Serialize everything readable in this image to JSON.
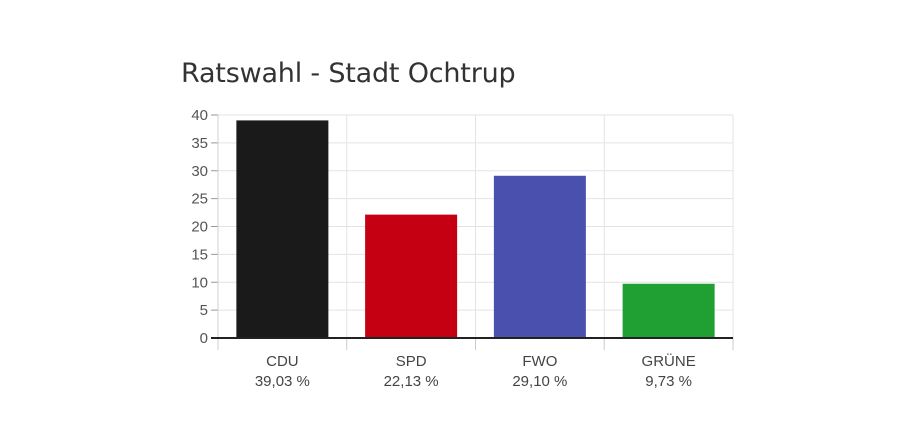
{
  "chart_data": {
    "type": "bar",
    "title": "Ratswahl - Stadt Ochtrup",
    "categories": [
      "CDU",
      "SPD",
      "FWO",
      "GRÜNE"
    ],
    "value_labels": [
      "39,03 %",
      "22,13 %",
      "29,10 %",
      "9,73 %"
    ],
    "values": [
      39.03,
      22.13,
      29.1,
      9.73
    ],
    "colors": [
      "#1a1a1a",
      "#c50012",
      "#4a50ad",
      "#20a032"
    ],
    "ylim": [
      0,
      40
    ],
    "yticks": [
      0,
      5,
      10,
      15,
      20,
      25,
      30,
      35,
      40
    ],
    "xlabel": "",
    "ylabel": "",
    "grid": true,
    "legend": "none"
  }
}
